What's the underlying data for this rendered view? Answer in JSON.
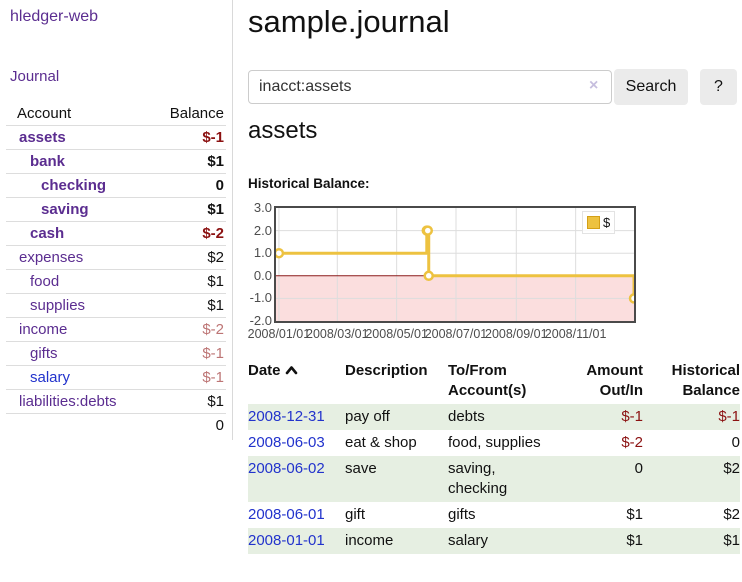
{
  "colors": {
    "accent_purple": "#5b2d90",
    "link_blue": "#2233cc",
    "negative_strong": "#8b1111",
    "negative_faded": "#bd7575",
    "row_stripe_green": "#e6efe2",
    "series_gold": "#EDC240",
    "button_gray": "#ebebeb"
  },
  "sidebar": {
    "brand": "hledger-web",
    "journal_link": "Journal",
    "accounts_table": {
      "headers": [
        "Account",
        "Balance"
      ],
      "rows": [
        {
          "account": "assets",
          "indent": 1,
          "balance": "$-1",
          "bold": true,
          "balance_style": "negative-strong"
        },
        {
          "account": "bank",
          "indent": 2,
          "balance": "$1",
          "bold": true,
          "balance_style": "normal"
        },
        {
          "account": "checking",
          "indent": 3,
          "balance": "0",
          "bold": true,
          "balance_style": "normal"
        },
        {
          "account": "saving",
          "indent": 3,
          "balance": "$1",
          "bold": true,
          "balance_style": "normal"
        },
        {
          "account": "cash",
          "indent": 2,
          "balance": "$-2",
          "bold": true,
          "balance_style": "negative-strong"
        },
        {
          "account": "expenses",
          "indent": 1,
          "balance": "$2",
          "bold": false,
          "balance_style": "normal"
        },
        {
          "account": "food",
          "indent": 2,
          "balance": "$1",
          "bold": false,
          "balance_style": "normal"
        },
        {
          "account": "supplies",
          "indent": 2,
          "balance": "$1",
          "bold": false,
          "balance_style": "normal"
        },
        {
          "account": "income",
          "indent": 1,
          "balance": "$-2",
          "bold": false,
          "balance_style": "negative-faded"
        },
        {
          "account": "gifts",
          "indent": 2,
          "balance": "$-1",
          "bold": false,
          "balance_style": "negative-faded"
        },
        {
          "account": "salary",
          "indent": 2,
          "balance": "$-1",
          "bold": false,
          "balance_style": "negative-faded",
          "link_style": "blue"
        },
        {
          "account": "liabilities:debts",
          "indent": 1,
          "balance": "$1",
          "bold": false,
          "balance_style": "normal"
        }
      ],
      "total": "0"
    }
  },
  "main": {
    "title": "sample.journal",
    "search": {
      "value": "inacct:assets",
      "clear_icon": "×",
      "button_label": "Search",
      "help_label": "?"
    },
    "account_heading": "assets",
    "section_label": "Historical Balance:"
  },
  "chart_data": {
    "type": "line",
    "step": true,
    "title": "Historical Balance:",
    "legend": {
      "label": "$",
      "position": "top-right"
    },
    "series": [
      {
        "name": "$",
        "color": "#EDC240",
        "points": [
          [
            "2008-01-01",
            1
          ],
          [
            "2008-06-01",
            2
          ],
          [
            "2008-06-02",
            2
          ],
          [
            "2008-06-03",
            0
          ],
          [
            "2008-12-31",
            -1
          ]
        ]
      }
    ],
    "x_ticks": [
      {
        "date": "2008-01-01",
        "label": "2008/01/01"
      },
      {
        "date": "2008-03-01",
        "label": "2008/03/01"
      },
      {
        "date": "2008-05-01",
        "label": "2008/05/01"
      },
      {
        "date": "2008-07-01",
        "label": "2008/07/01"
      },
      {
        "date": "2008-09-01",
        "label": "2008/09/01"
      },
      {
        "date": "2008-11-01",
        "label": "2008/11/01"
      }
    ],
    "y_ticks": [
      {
        "value": 3,
        "label": "3.0"
      },
      {
        "value": 2,
        "label": "2.0"
      },
      {
        "value": 1,
        "label": "1.0"
      },
      {
        "value": 0,
        "label": "0.0"
      },
      {
        "value": -1,
        "label": "-1.0"
      },
      {
        "value": -2,
        "label": "-2.0"
      }
    ],
    "xlim": [
      "2007-12-29",
      "2008-12-31"
    ],
    "ylim": [
      -2,
      3
    ],
    "grid": true,
    "grid_color": "#dddddd",
    "border_color": "#4a4a4a",
    "zero_line_color": "#8b1a1a",
    "negative_region_fill": "#fbdede"
  },
  "register_table": {
    "headers": [
      {
        "label": "Date",
        "sort": "asc"
      },
      {
        "label": "Description"
      },
      {
        "label": "To/From Account(s)"
      },
      {
        "label": "Amount Out/In"
      },
      {
        "label": "Historical Balance"
      }
    ],
    "rows": [
      {
        "date": "2008-12-31",
        "description": "pay off",
        "accounts": "debts",
        "amount": "$-1",
        "balance": "$-1"
      },
      {
        "date": "2008-06-03",
        "description": "eat & shop",
        "accounts": "food, supplies",
        "amount": "$-2",
        "balance": "0"
      },
      {
        "date": "2008-06-02",
        "description": "save",
        "accounts": "saving,\nchecking",
        "amount": "0",
        "balance": "$2"
      },
      {
        "date": "2008-06-01",
        "description": "gift",
        "accounts": "gifts",
        "amount": "$1",
        "balance": "$2"
      },
      {
        "date": "2008-01-01",
        "description": "income",
        "accounts": "salary",
        "amount": "$1",
        "balance": "$1"
      }
    ]
  }
}
